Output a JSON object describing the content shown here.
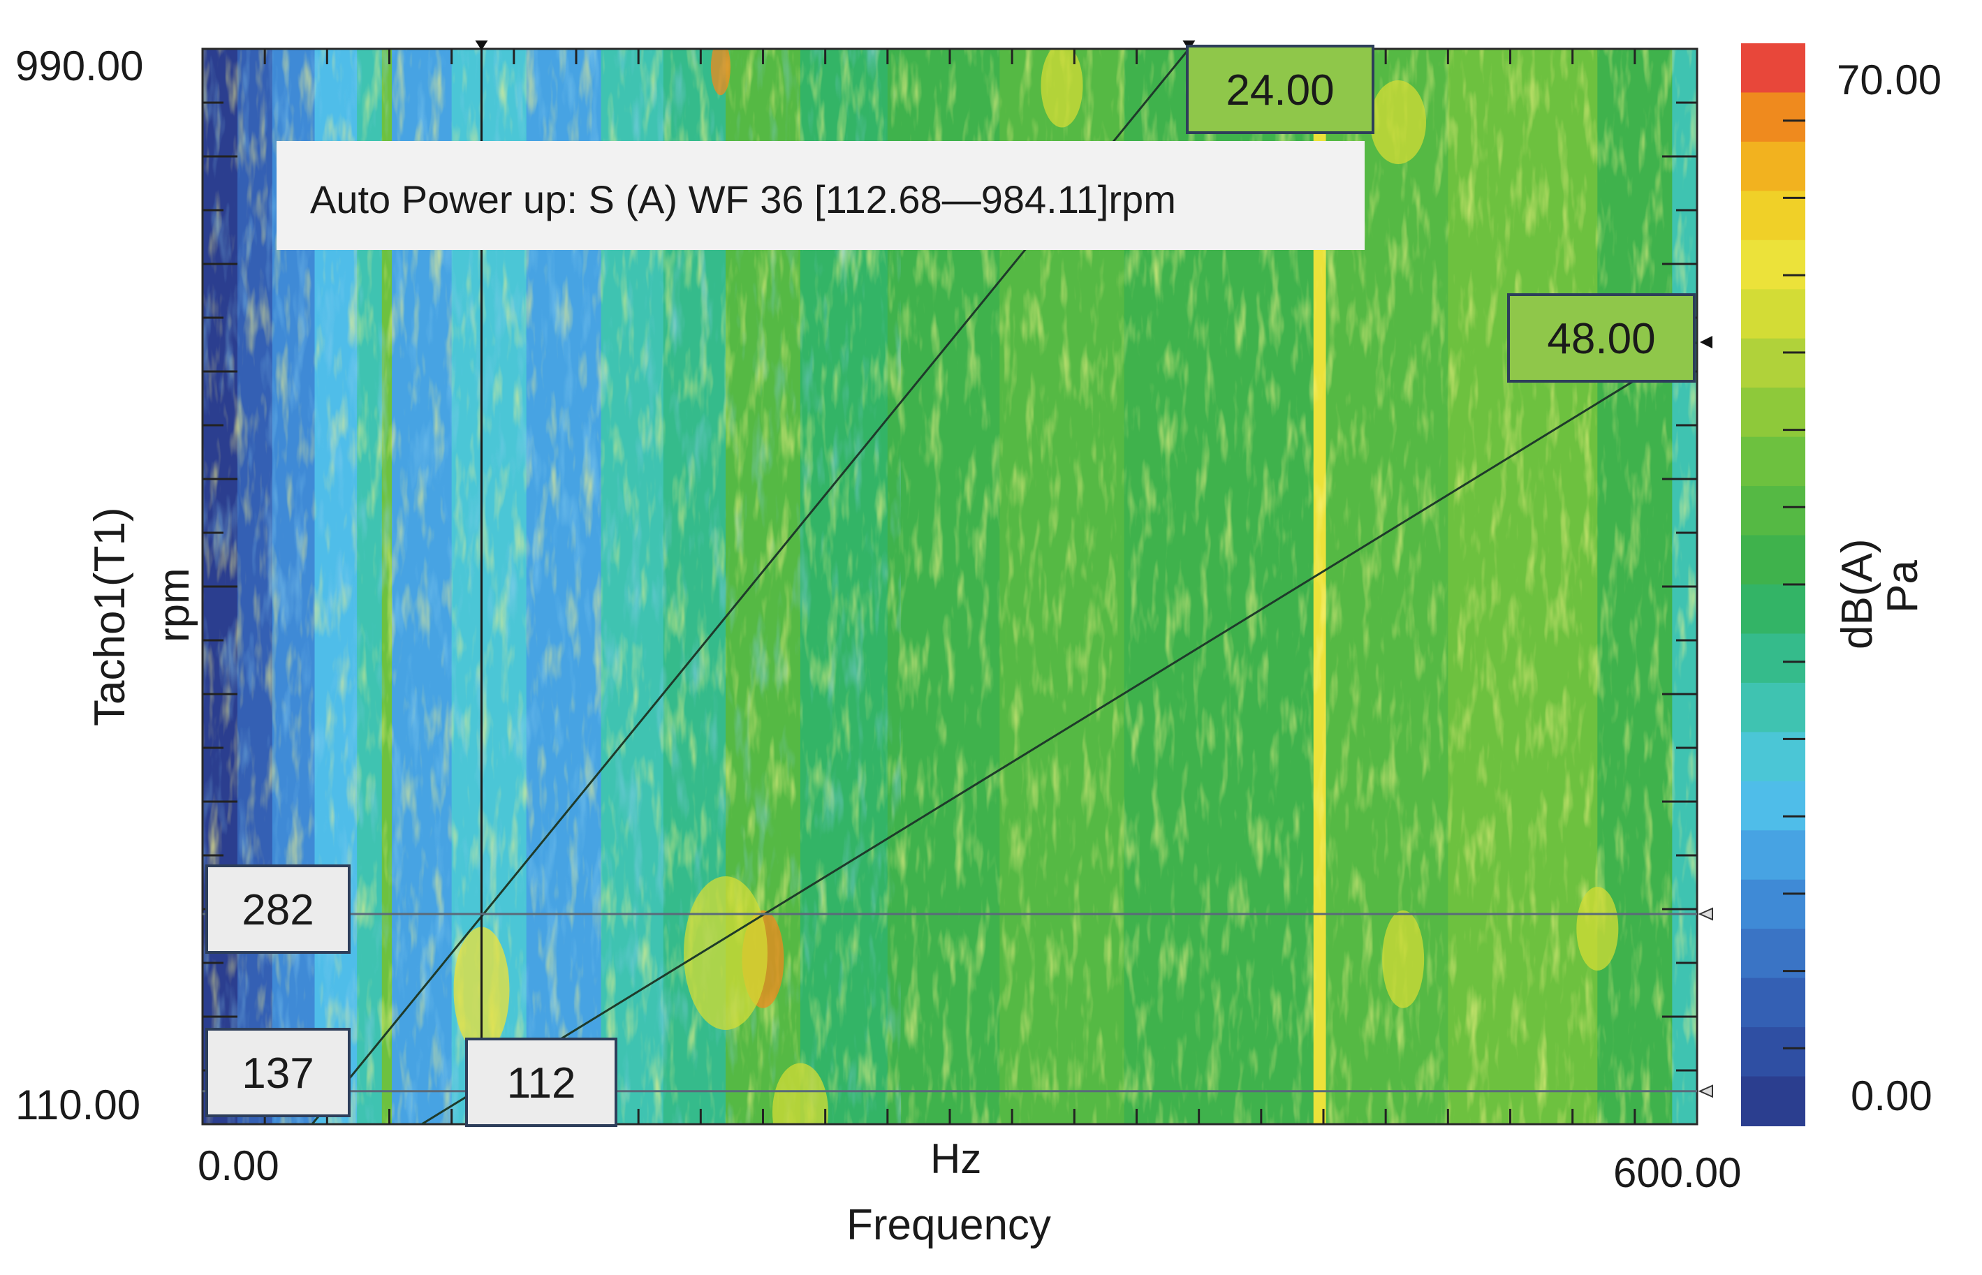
{
  "chart_data": {
    "type": "heatmap",
    "title": "Auto Power up: S  (A) WF 36 [112.68—984.11]rpm",
    "x_axis": {
      "label": "Frequency",
      "unit": "Hz",
      "min": 0,
      "max": 600,
      "min_label": "0.00",
      "max_label": "600.00"
    },
    "y_axis": {
      "label": "Tacho1(T1)",
      "unit": "rpm",
      "min": 110,
      "max": 990,
      "min_label": "110.00",
      "max_label": "990.00"
    },
    "colorbar": {
      "min": 0,
      "max": 70,
      "min_label": "0.00",
      "max_label": "70.00",
      "unit_labels": [
        "dB(A)",
        "Pa"
      ],
      "colors": [
        "#2b3e8f",
        "#2f4fa3",
        "#3460b4",
        "#3a74c5",
        "#3f8ad6",
        "#47a3e3",
        "#4fbde9",
        "#4bc6d6",
        "#3fc3b1",
        "#35bb8b",
        "#33b466",
        "#3fb24c",
        "#55b944",
        "#6dc13f",
        "#8ec93a",
        "#b0d23a",
        "#d3dc36",
        "#ece23a",
        "#f0d028",
        "#f2b21f",
        "#ef8a1e",
        "#e8473a"
      ]
    },
    "order_lines": [
      {
        "order": 24,
        "label": "24.00",
        "hz_per_rpm": 0.4
      },
      {
        "order": 48,
        "label": "48.00",
        "hz_per_rpm": 0.8
      }
    ],
    "cursors": {
      "vertical_hz": 112,
      "vertical_label": "112",
      "horizontal_rpm": [
        {
          "value": 282,
          "label": "282"
        },
        {
          "value": 137,
          "label": "137"
        }
      ]
    },
    "features": [
      {
        "kind": "constant-frequency-band",
        "hz": 448,
        "level": "high"
      },
      {
        "kind": "low-frequency-region",
        "hz_range": [
          0,
          60
        ],
        "level": "low"
      }
    ]
  }
}
